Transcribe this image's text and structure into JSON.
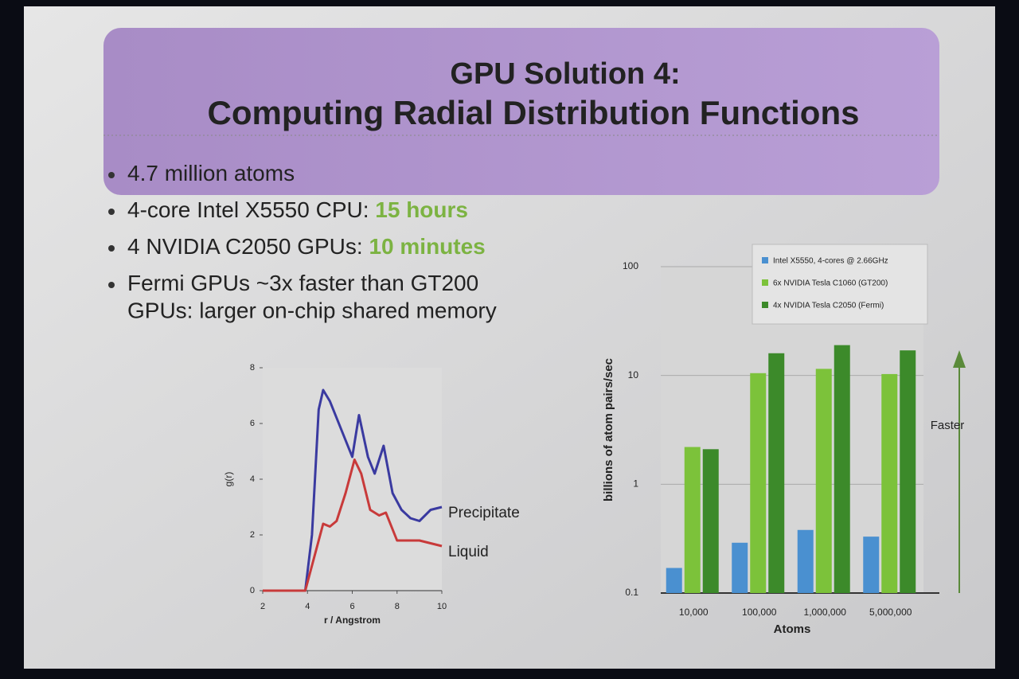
{
  "slide": {
    "title": [
      "GPU Solution 4:",
      "Computing Radial Distribution Functions"
    ],
    "bullets": [
      {
        "text": "4.7 million atoms"
      },
      {
        "text": "4-core Intel X5550 CPU: ",
        "highlight": "15 hours"
      },
      {
        "text": "4 NVIDIA C2050 GPUs: ",
        "highlight": "10 minutes"
      },
      {
        "text": "Fermi GPUs ~3x faster than GT200",
        "continuation": "GPUs: larger on-chip shared memory"
      }
    ]
  },
  "chart_data": [
    {
      "type": "line",
      "xlabel": "r / Angstrom",
      "ylabel": "g(r)",
      "xlim": [
        2,
        10
      ],
      "ylim": [
        0,
        8
      ],
      "xticks": [
        2,
        4,
        6,
        8,
        10
      ],
      "yticks": [
        0,
        2,
        4,
        6,
        8
      ],
      "series": [
        {
          "name": "Precipitate",
          "color": "#3a3aa0",
          "x": [
            2,
            3,
            3.9,
            4.2,
            4.5,
            4.7,
            5,
            5.3,
            5.6,
            6,
            6.3,
            6.7,
            7,
            7.4,
            7.8,
            8.2,
            8.6,
            9,
            9.5,
            10
          ],
          "values": [
            0,
            0,
            0,
            2,
            6.5,
            7.2,
            6.8,
            6.2,
            5.6,
            4.8,
            6.3,
            4.8,
            4.2,
            5.2,
            3.5,
            2.9,
            2.6,
            2.5,
            2.9,
            3.0
          ]
        },
        {
          "name": "Liquid",
          "color": "#c83a3a",
          "x": [
            2,
            3,
            3.9,
            4.3,
            4.7,
            5,
            5.3,
            5.7,
            6.1,
            6.4,
            6.8,
            7.2,
            7.5,
            8,
            8.5,
            9,
            10
          ],
          "values": [
            0,
            0,
            0,
            1.2,
            2.4,
            2.3,
            2.5,
            3.5,
            4.7,
            4.2,
            2.9,
            2.7,
            2.8,
            1.8,
            1.8,
            1.8,
            1.6
          ]
        }
      ]
    },
    {
      "type": "bar",
      "log_scale": true,
      "grid": true,
      "legend": "top-right",
      "xlabel": "Atoms",
      "ylabel": "billions of atom pairs/sec",
      "annotation": "Faster",
      "categories": [
        "10,000",
        "100,000",
        "1,000,000",
        "5,000,000"
      ],
      "ylim": [
        0.1,
        100
      ],
      "yticks": [
        0.1,
        1,
        10,
        100
      ],
      "series": [
        {
          "name": "Intel X5550, 4-cores @ 2.66GHz",
          "color": "#4a90d0",
          "values": [
            0.17,
            0.29,
            0.38,
            0.33
          ]
        },
        {
          "name": "6x NVIDIA Tesla C1060 (GT200)",
          "color": "#7cc23a",
          "values": [
            2.2,
            10.5,
            11.5,
            10.3
          ]
        },
        {
          "name": "4x NVIDIA Tesla C2050 (Fermi)",
          "color": "#3c8a2a",
          "values": [
            2.1,
            16,
            19,
            17
          ]
        }
      ]
    }
  ]
}
